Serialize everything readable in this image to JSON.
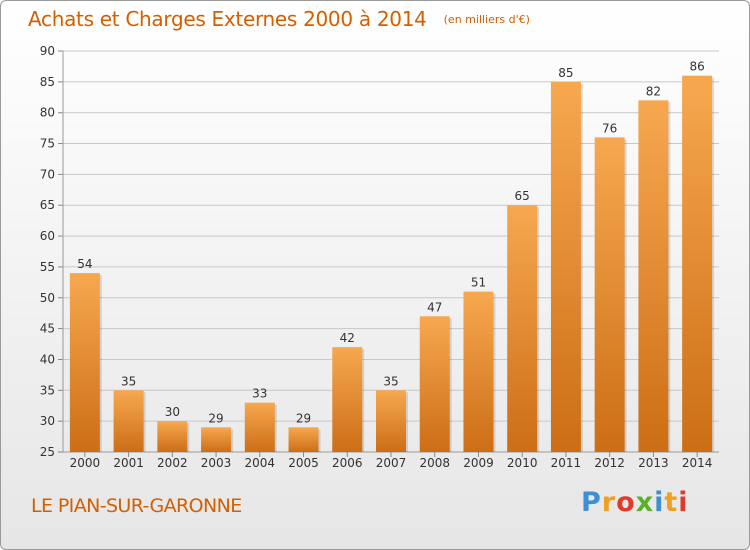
{
  "header": {
    "title": "Achats et Charges Externes 2000 à 2014",
    "unit": "(en milliers d'€)"
  },
  "footer": {
    "location": "LE PIAN-SUR-GARONNE",
    "brand_letters": [
      "P",
      "r",
      "o",
      "x",
      "i",
      "t",
      "i"
    ],
    "brand_colors": [
      "#3b8fd6",
      "#f0a020",
      "#e03b2a",
      "#5ab02a",
      "#3b8fd6",
      "#f0a020",
      "#e03b2a"
    ]
  },
  "colors": {
    "bar_light": "#f7a84f",
    "bar_dark": "#cc6e16",
    "grid": "#c8c8c8",
    "axis_text": "#333333",
    "title": "#d35f00"
  },
  "chart_data": {
    "type": "bar",
    "categories": [
      "2000",
      "2001",
      "2002",
      "2003",
      "2004",
      "2005",
      "2006",
      "2007",
      "2008",
      "2009",
      "2010",
      "2011",
      "2012",
      "2013",
      "2014"
    ],
    "values": [
      54,
      35,
      30,
      29,
      33,
      29,
      42,
      35,
      47,
      51,
      65,
      85,
      76,
      82,
      86
    ],
    "ylim": [
      25,
      90
    ],
    "yticks": [
      25,
      30,
      35,
      40,
      45,
      50,
      55,
      60,
      65,
      70,
      75,
      80,
      85,
      90
    ],
    "grid": true,
    "data_labels": true
  }
}
